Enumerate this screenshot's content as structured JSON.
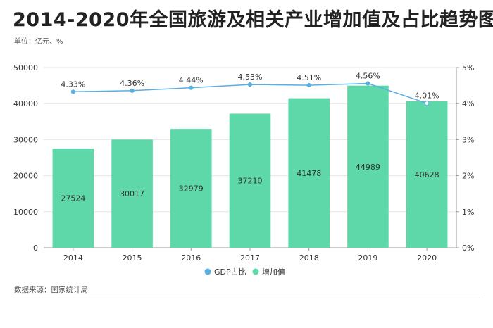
{
  "title": "2014-2020年全国旅游及相关产业增加值及占比趋势图",
  "unit_note": "单位：亿元、%",
  "source": "数据来源：国家统计局",
  "colors": {
    "bar": "#5fd8a9",
    "line": "#5aaee0",
    "grid": "#e6e6e6",
    "axis": "#999999"
  },
  "chart_data": {
    "type": "bar",
    "title": "2014-2020年全国旅游及相关产业增加值及占比趋势图",
    "categories": [
      "2014",
      "2015",
      "2016",
      "2017",
      "2018",
      "2019",
      "2020"
    ],
    "series": [
      {
        "name": "增加值",
        "type": "bar",
        "axis": "left",
        "values": [
          27524,
          30017,
          32979,
          37210,
          41478,
          44989,
          40628
        ],
        "labels": [
          "27524",
          "30017",
          "32979",
          "37210",
          "41478",
          "44989",
          "40628"
        ]
      },
      {
        "name": "GDP占比",
        "type": "line",
        "axis": "right",
        "values": [
          4.33,
          4.36,
          4.44,
          4.53,
          4.51,
          4.56,
          4.01
        ],
        "labels": [
          "4.33%",
          "4.36%",
          "4.44%",
          "4.53%",
          "4.51%",
          "4.56%",
          "4.01%"
        ]
      }
    ],
    "ylim_left": [
      0,
      50000
    ],
    "yticks_left": [
      "0",
      "10000",
      "20000",
      "30000",
      "40000",
      "50000"
    ],
    "ylim_right": [
      0,
      5
    ],
    "yticks_right": [
      "0%",
      "1%",
      "2%",
      "3%",
      "4%",
      "5%"
    ],
    "legend": [
      "GDP占比",
      "增加值"
    ],
    "legend_position": "bottom"
  }
}
